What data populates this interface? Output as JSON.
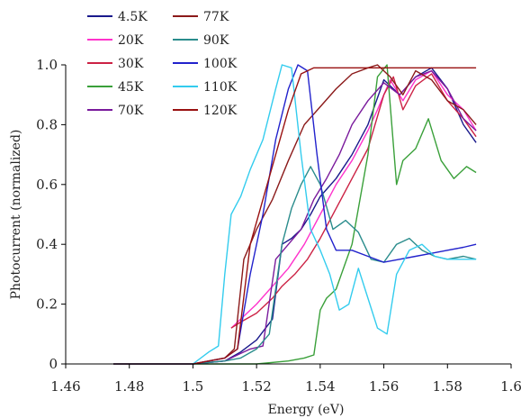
{
  "chart_data": {
    "type": "line",
    "title": "",
    "xlabel": "Energy (eV)",
    "ylabel": "Photocurrent (normalized)",
    "xlim": [
      1.46,
      1.6
    ],
    "ylim": [
      0,
      1.0
    ],
    "xticks": [
      "1.46",
      "1.48",
      "1.5",
      "1.52",
      "1.54",
      "1.56",
      "1.58",
      "1.6"
    ],
    "yticks": [
      "0",
      "0.2",
      "0.4",
      "0.6",
      "0.8",
      "1.0"
    ],
    "grid": false,
    "legend_position": "top-left",
    "series": [
      {
        "name": "4.5K",
        "color": "#1a1a8c",
        "x": [
          1.475,
          1.5,
          1.51,
          1.515,
          1.52,
          1.525,
          1.528,
          1.531,
          1.534,
          1.537,
          1.54,
          1.545,
          1.55,
          1.555,
          1.56,
          1.565,
          1.57,
          1.575,
          1.58,
          1.585,
          1.589
        ],
        "y": [
          0.0,
          0.0,
          0.01,
          0.04,
          0.08,
          0.15,
          0.4,
          0.42,
          0.45,
          0.5,
          0.56,
          0.62,
          0.7,
          0.8,
          0.95,
          0.9,
          0.96,
          0.99,
          0.92,
          0.8,
          0.74
        ]
      },
      {
        "name": "20K",
        "color": "#ff33cc",
        "x": [
          1.512,
          1.515,
          1.52,
          1.525,
          1.53,
          1.535,
          1.54,
          1.545,
          1.55,
          1.555,
          1.558,
          1.562,
          1.566,
          1.57,
          1.575,
          1.58,
          1.585,
          1.589
        ],
        "y": [
          0.12,
          0.15,
          0.2,
          0.26,
          0.32,
          0.4,
          0.5,
          0.6,
          0.68,
          0.78,
          0.85,
          0.95,
          0.88,
          0.95,
          0.98,
          0.9,
          0.85,
          0.78
        ]
      },
      {
        "name": "30K",
        "color": "#cc2244",
        "x": [
          1.512,
          1.515,
          1.52,
          1.525,
          1.528,
          1.532,
          1.536,
          1.54,
          1.545,
          1.55,
          1.555,
          1.56,
          1.563,
          1.566,
          1.57,
          1.575,
          1.58,
          1.585,
          1.589
        ],
        "y": [
          0.12,
          0.14,
          0.17,
          0.22,
          0.26,
          0.3,
          0.35,
          0.42,
          0.52,
          0.62,
          0.72,
          0.9,
          0.96,
          0.85,
          0.93,
          0.97,
          0.88,
          0.82,
          0.76
        ]
      },
      {
        "name": "45K",
        "color": "#3aa03a",
        "x": [
          1.475,
          1.5,
          1.52,
          1.53,
          1.535,
          1.538,
          1.54,
          1.542,
          1.545,
          1.55,
          1.555,
          1.558,
          1.561,
          1.564,
          1.566,
          1.57,
          1.574,
          1.578,
          1.582,
          1.586,
          1.589
        ],
        "y": [
          0.0,
          0.0,
          0.0,
          0.01,
          0.02,
          0.03,
          0.18,
          0.22,
          0.25,
          0.4,
          0.7,
          0.96,
          1.0,
          0.6,
          0.68,
          0.72,
          0.82,
          0.68,
          0.62,
          0.66,
          0.64
        ]
      },
      {
        "name": "70K",
        "color": "#7a1a9c",
        "x": [
          1.475,
          1.5,
          1.51,
          1.514,
          1.518,
          1.522,
          1.526,
          1.53,
          1.534,
          1.538,
          1.542,
          1.546,
          1.55,
          1.555,
          1.56,
          1.565,
          1.57,
          1.575,
          1.58,
          1.585,
          1.589
        ],
        "y": [
          0.0,
          0.0,
          0.01,
          0.03,
          0.05,
          0.06,
          0.35,
          0.4,
          0.45,
          0.55,
          0.62,
          0.7,
          0.8,
          0.88,
          0.94,
          0.9,
          0.96,
          0.98,
          0.92,
          0.82,
          0.78
        ]
      },
      {
        "name": "77K",
        "color": "#8b1a1a",
        "x": [
          1.475,
          1.5,
          1.51,
          1.513,
          1.516,
          1.52,
          1.525,
          1.53,
          1.535,
          1.54,
          1.545,
          1.55,
          1.555,
          1.558,
          1.562,
          1.566,
          1.57,
          1.575,
          1.58,
          1.585,
          1.589
        ],
        "y": [
          0.0,
          0.0,
          0.02,
          0.05,
          0.35,
          0.45,
          0.55,
          0.68,
          0.8,
          0.86,
          0.92,
          0.97,
          0.99,
          1.0,
          0.96,
          0.9,
          0.98,
          0.95,
          0.88,
          0.85,
          0.8
        ]
      },
      {
        "name": "90K",
        "color": "#2a8c8c",
        "x": [
          1.475,
          1.5,
          1.51,
          1.515,
          1.52,
          1.524,
          1.528,
          1.531,
          1.534,
          1.537,
          1.54,
          1.544,
          1.548,
          1.552,
          1.556,
          1.56,
          1.564,
          1.568,
          1.572,
          1.576,
          1.58,
          1.585,
          1.589
        ],
        "y": [
          0.0,
          0.0,
          0.01,
          0.02,
          0.05,
          0.1,
          0.4,
          0.52,
          0.6,
          0.66,
          0.6,
          0.45,
          0.48,
          0.44,
          0.35,
          0.34,
          0.4,
          0.42,
          0.38,
          0.36,
          0.35,
          0.36,
          0.35
        ]
      },
      {
        "name": "100K",
        "color": "#2222cc",
        "x": [
          1.475,
          1.5,
          1.51,
          1.514,
          1.518,
          1.522,
          1.526,
          1.53,
          1.533,
          1.536,
          1.539,
          1.542,
          1.545,
          1.55,
          1.555,
          1.56,
          1.565,
          1.57,
          1.575,
          1.58,
          1.585,
          1.589
        ],
        "y": [
          0.0,
          0.0,
          0.02,
          0.05,
          0.3,
          0.5,
          0.75,
          0.92,
          1.0,
          0.98,
          0.7,
          0.45,
          0.38,
          0.38,
          0.36,
          0.34,
          0.35,
          0.36,
          0.37,
          0.38,
          0.39,
          0.4
        ]
      },
      {
        "name": "110K",
        "color": "#33ccee",
        "x": [
          1.475,
          1.5,
          1.505,
          1.508,
          1.51,
          1.512,
          1.515,
          1.518,
          1.522,
          1.526,
          1.528,
          1.531,
          1.534,
          1.537,
          1.54,
          1.543,
          1.546,
          1.549,
          1.552,
          1.555,
          1.558,
          1.561,
          1.564,
          1.568,
          1.572,
          1.576,
          1.58,
          1.585,
          1.589
        ],
        "y": [
          0.0,
          0.0,
          0.04,
          0.06,
          0.3,
          0.5,
          0.56,
          0.65,
          0.75,
          0.92,
          1.0,
          0.99,
          0.7,
          0.45,
          0.38,
          0.3,
          0.18,
          0.2,
          0.32,
          0.22,
          0.12,
          0.1,
          0.3,
          0.38,
          0.4,
          0.36,
          0.35,
          0.35,
          0.35
        ]
      },
      {
        "name": "120K",
        "color": "#991111",
        "x": [
          1.475,
          1.5,
          1.51,
          1.514,
          1.518,
          1.522,
          1.526,
          1.53,
          1.534,
          1.538,
          1.542,
          1.546,
          1.55,
          1.555,
          1.56,
          1.565,
          1.57,
          1.575,
          1.58,
          1.585,
          1.589
        ],
        "y": [
          0.0,
          0.0,
          0.02,
          0.05,
          0.4,
          0.55,
          0.7,
          0.85,
          0.97,
          0.99,
          0.99,
          0.99,
          0.99,
          0.99,
          0.99,
          0.99,
          0.99,
          0.99,
          0.99,
          0.99,
          0.99
        ]
      }
    ]
  }
}
